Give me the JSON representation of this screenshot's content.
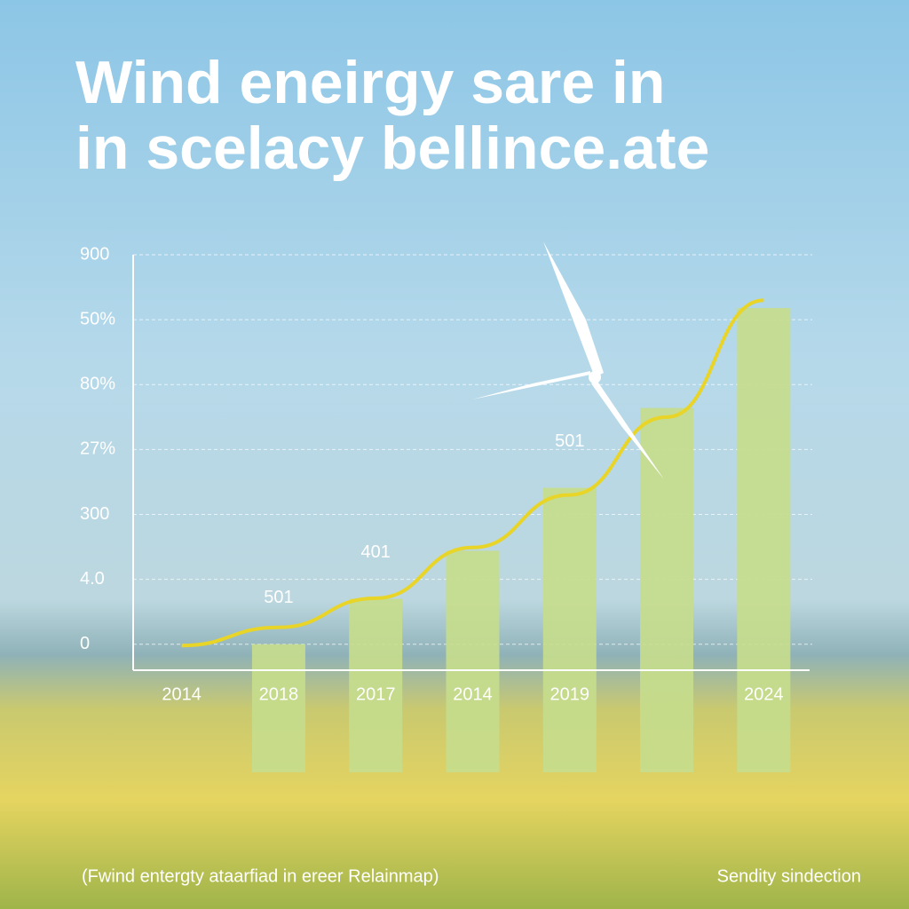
{
  "chart_data": {
    "type": "bar",
    "title": [
      "Wind eneirgy sare in",
      "in scelacy bellince.ate"
    ],
    "categories": [
      "2014",
      "2018",
      "2017",
      "2014",
      "2019",
      null,
      "2024"
    ],
    "values": [
      null,
      0,
      0.7,
      1.44,
      2.41,
      3.64,
      5.18
    ],
    "color": "#c6dc8c",
    "line_values": [
      -0.02,
      0.26,
      0.71,
      1.49,
      2.3,
      3.5,
      5.3
    ],
    "line_color": "#e9d428",
    "annotations": [
      {
        "index": 1,
        "text": "501"
      },
      {
        "index": 2,
        "text": "401"
      },
      {
        "index": 4,
        "text": "501"
      }
    ],
    "ylim": [
      -0.4,
      6
    ],
    "yticks": [
      {
        "value": 0,
        "label": "0"
      },
      {
        "value": 1,
        "label": "4.0"
      },
      {
        "value": 2,
        "label": "300"
      },
      {
        "value": 3,
        "label": "27%"
      },
      {
        "value": 4,
        "label": "80%"
      },
      {
        "value": 5,
        "label": "50%"
      },
      {
        "value": 6,
        "label": "900"
      }
    ],
    "grid": true,
    "footer_left": "(Fwind entergty ataarfiad in ereer Relainmap)",
    "footer_right": "Sendity sindection"
  }
}
